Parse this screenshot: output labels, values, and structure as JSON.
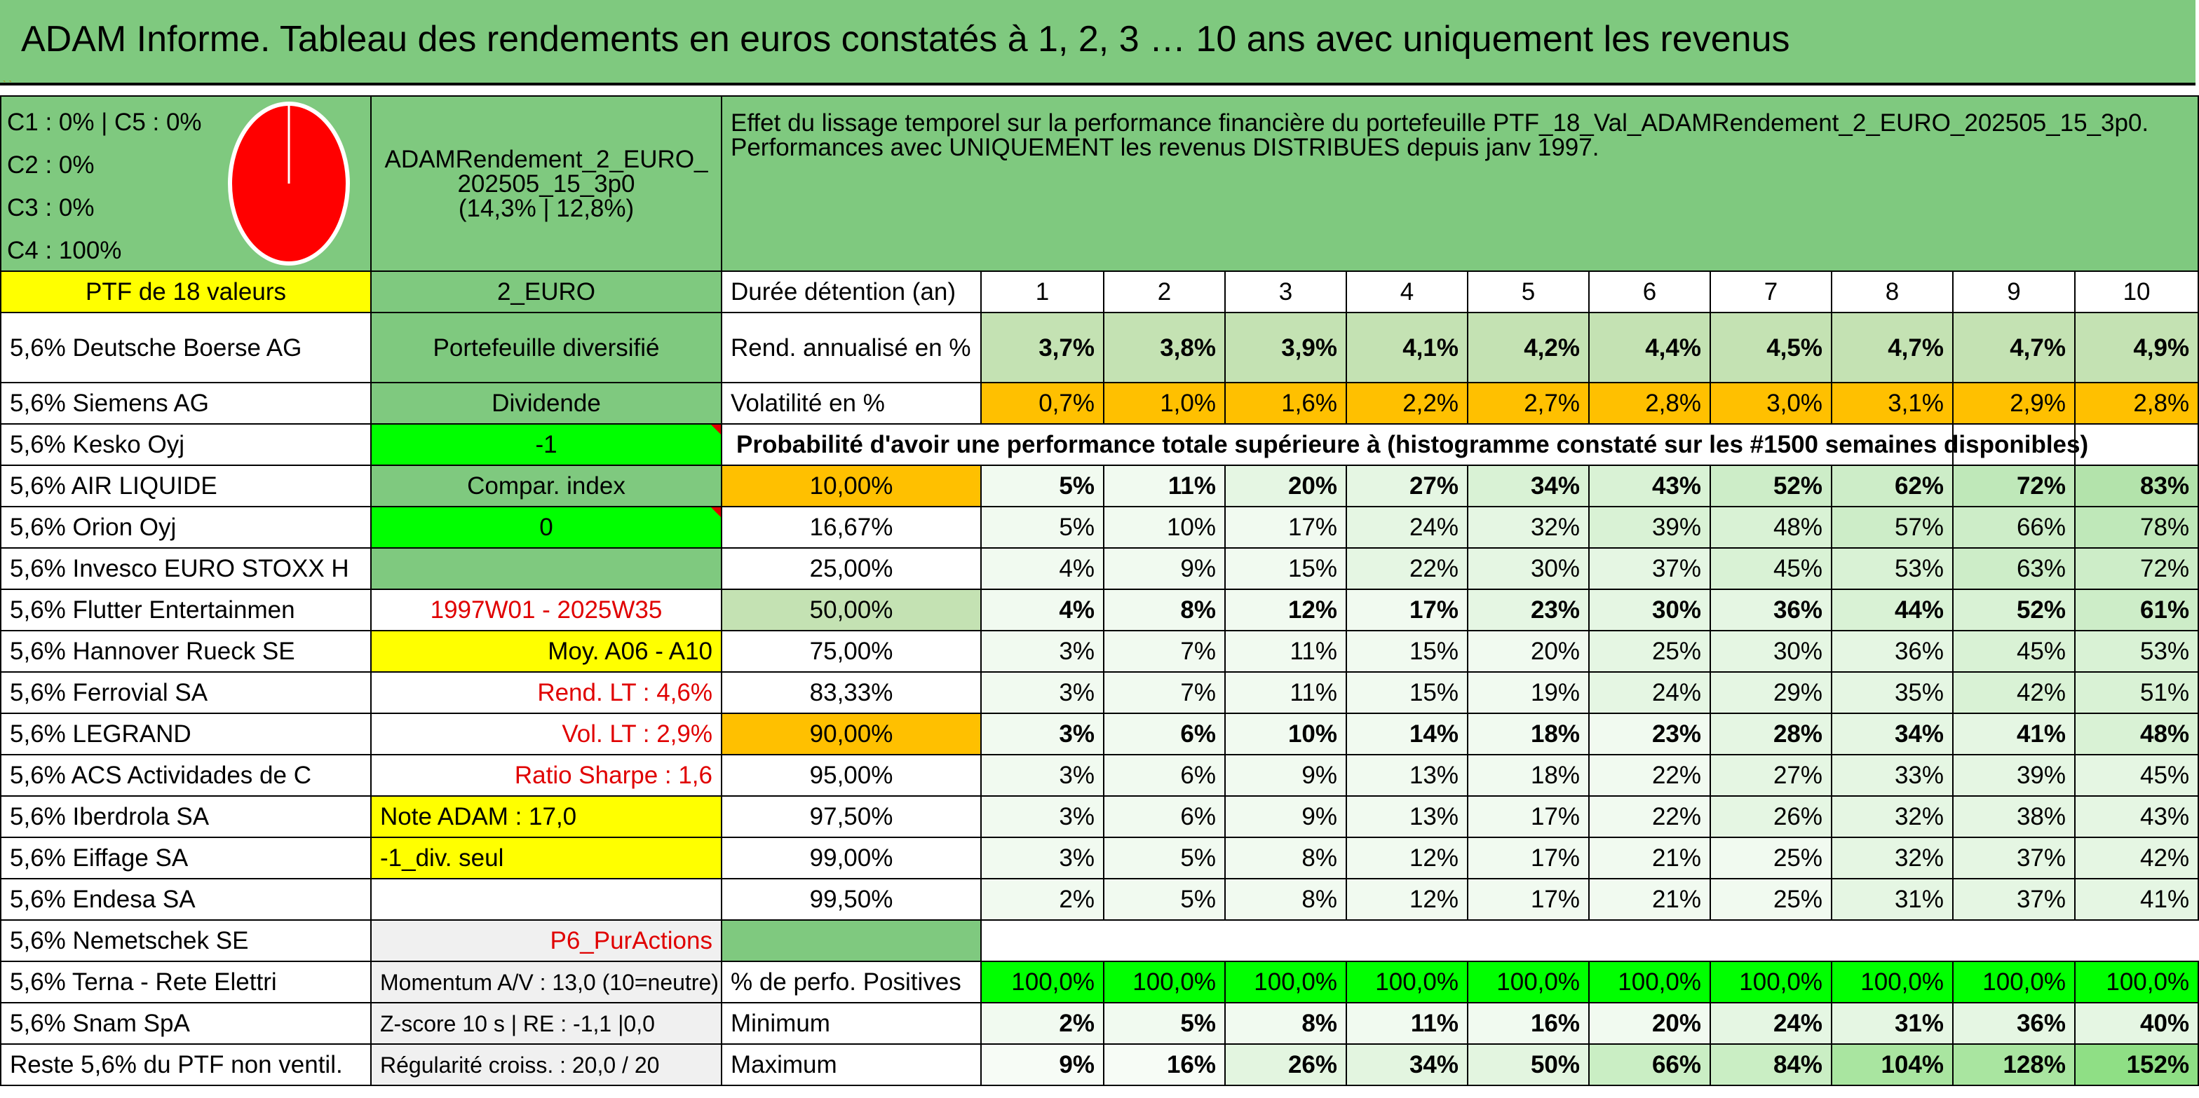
{
  "title": "ADAM Informe. Tableau des rendements en euros constatés à 1, 2, 3 … 10 ans avec uniquement les revenus",
  "legend": {
    "lines": [
      "C1 : 0% | C5 : 0%",
      "C2 : 0%",
      "C3 : 0%",
      "C4 : 100%"
    ],
    "pie": {
      "colors": {
        "fill": "#ff0000",
        "stroke": "#ffffff"
      },
      "slices": [
        {
          "label": "C4",
          "value": 100
        }
      ]
    }
  },
  "portfolio_code": [
    "ADAMRendement_2_EURO_",
    "202505_15_3p0",
    "(14,3% | 12,8%)"
  ],
  "effet_text": "Effet du lissage temporel sur la performance financière du portefeuille PTF_18_Val_ADAMRendement_2_EURO_202505_15_3p0. Performances avec UNIQUEMENT les revenus DISTRIBUES depuis janv 1997.",
  "ptf_header": "PTF de 18 valeurs",
  "currency": "2_EURO",
  "duree_label": "Durée détention (an)",
  "years": [
    "1",
    "2",
    "3",
    "4",
    "5",
    "6",
    "7",
    "8",
    "9",
    "10"
  ],
  "holdings": [
    "5,6% Deutsche Boerse AG",
    "5,6% Siemens AG",
    "5,6% Kesko Oyj",
    "5,6% AIR LIQUIDE",
    "5,6% Orion Oyj",
    "5,6% Invesco EURO STOXX H",
    "5,6% Flutter Entertainmen",
    "5,6% Hannover Rueck SE",
    "5,6% Ferrovial SA",
    "5,6% LEGRAND",
    "5,6% ACS Actividades de C",
    "5,6% Iberdrola SA",
    "5,6% Eiffage SA",
    "5,6% Endesa SA",
    "5,6% Nemetschek SE",
    "5,6% Terna - Rete Elettri",
    "5,6% Snam SpA",
    "Reste 5,6% du PTF non ventil."
  ],
  "info": [
    "Portefeuille diversifié",
    "Dividende",
    "-1",
    "Compar. index",
    "0",
    "",
    "1997W01 - 2025W35",
    "Moy. A06 - A10",
    "Rend. LT : 4,6%",
    "Vol. LT : 2,9%",
    "Ratio Sharpe : 1,6",
    "Note ADAM : 17,0",
    "-1_div. seul",
    "",
    "P6_PurActions",
    "Momentum A/V : 13,0 (10=neutre)",
    "Z-score 10 s | RE : -1,1 |0,0",
    "Régularité croiss. : 20,0 / 20"
  ],
  "rend": {
    "label": "Rend. annualisé en %",
    "values": [
      "3,7%",
      "3,8%",
      "3,9%",
      "4,1%",
      "4,2%",
      "4,4%",
      "4,5%",
      "4,7%",
      "4,7%",
      "4,9%"
    ]
  },
  "vol": {
    "label": "Volatilité en %",
    "values": [
      "0,7%",
      "1,0%",
      "1,6%",
      "2,2%",
      "2,7%",
      "2,8%",
      "3,0%",
      "3,1%",
      "2,9%",
      "2,8%"
    ]
  },
  "proba_title": "Probabilité d'avoir une performance totale supérieure à (histogramme constaté sur les #1500 semaines disponibles)",
  "proba": [
    {
      "level": "10,00%",
      "values": [
        "5%",
        "11%",
        "20%",
        "27%",
        "34%",
        "43%",
        "52%",
        "62%",
        "72%",
        "83%"
      ]
    },
    {
      "level": "16,67%",
      "values": [
        "5%",
        "10%",
        "17%",
        "24%",
        "32%",
        "39%",
        "48%",
        "57%",
        "66%",
        "78%"
      ]
    },
    {
      "level": "25,00%",
      "values": [
        "4%",
        "9%",
        "15%",
        "22%",
        "30%",
        "37%",
        "45%",
        "53%",
        "63%",
        "72%"
      ]
    },
    {
      "level": "50,00%",
      "values": [
        "4%",
        "8%",
        "12%",
        "17%",
        "23%",
        "30%",
        "36%",
        "44%",
        "52%",
        "61%"
      ]
    },
    {
      "level": "75,00%",
      "values": [
        "3%",
        "7%",
        "11%",
        "15%",
        "20%",
        "25%",
        "30%",
        "36%",
        "45%",
        "53%"
      ]
    },
    {
      "level": "83,33%",
      "values": [
        "3%",
        "7%",
        "11%",
        "15%",
        "19%",
        "24%",
        "29%",
        "35%",
        "42%",
        "51%"
      ]
    },
    {
      "level": "90,00%",
      "values": [
        "3%",
        "6%",
        "10%",
        "14%",
        "18%",
        "23%",
        "28%",
        "34%",
        "41%",
        "48%"
      ]
    },
    {
      "level": "95,00%",
      "values": [
        "3%",
        "6%",
        "9%",
        "13%",
        "18%",
        "22%",
        "27%",
        "33%",
        "39%",
        "45%"
      ]
    },
    {
      "level": "97,50%",
      "values": [
        "3%",
        "6%",
        "9%",
        "13%",
        "17%",
        "22%",
        "26%",
        "32%",
        "38%",
        "43%"
      ]
    },
    {
      "level": "99,00%",
      "values": [
        "3%",
        "5%",
        "8%",
        "12%",
        "17%",
        "21%",
        "25%",
        "32%",
        "37%",
        "42%"
      ]
    },
    {
      "level": "99,50%",
      "values": [
        "2%",
        "5%",
        "8%",
        "12%",
        "17%",
        "21%",
        "25%",
        "31%",
        "37%",
        "41%"
      ]
    }
  ],
  "pos": {
    "label": "% de perfo. Positives",
    "values": [
      "100,0%",
      "100,0%",
      "100,0%",
      "100,0%",
      "100,0%",
      "100,0%",
      "100,0%",
      "100,0%",
      "100,0%",
      "100,0%"
    ]
  },
  "min": {
    "label": "Minimum",
    "values": [
      "2%",
      "5%",
      "8%",
      "11%",
      "16%",
      "20%",
      "24%",
      "31%",
      "36%",
      "40%"
    ]
  },
  "max": {
    "label": "Maximum",
    "values": [
      "9%",
      "16%",
      "26%",
      "34%",
      "50%",
      "66%",
      "84%",
      "104%",
      "128%",
      "152%"
    ]
  },
  "colors": {
    "header_green": "#7fc97f",
    "yellow": "#ffff00",
    "bright_green": "#00ff00",
    "orange": "#ffc000",
    "light_green": "#c4e2b3",
    "red_text": "#e00000"
  }
}
